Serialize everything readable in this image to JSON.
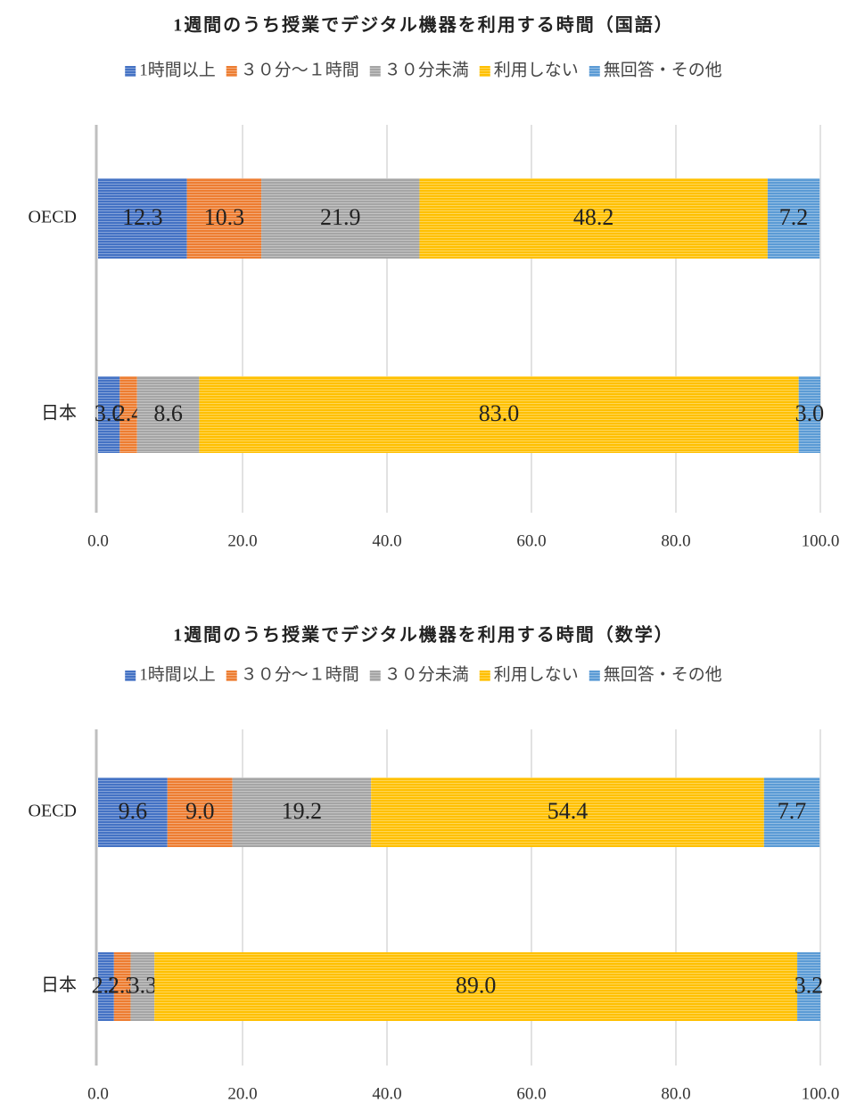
{
  "chart_data": [
    {
      "type": "stacked-bar-horizontal",
      "title": "1週間のうち授業でデジタル機器を利用する時間（国語）",
      "categories": [
        "OECD",
        "日本"
      ],
      "series": [
        {
          "name": "1時間以上",
          "color": "#4472c4",
          "values": [
            12.3,
            3.0
          ],
          "value_labels": [
            "12.3",
            "3.0"
          ]
        },
        {
          "name": "３０分～１時間",
          "color": "#ed7d31",
          "values": [
            10.3,
            2.4
          ],
          "value_labels": [
            "10.3",
            "2.4"
          ]
        },
        {
          "name": "３０分未満",
          "color": "#a5a5a5",
          "values": [
            21.9,
            8.6
          ],
          "value_labels": [
            "21.9",
            "8.6"
          ]
        },
        {
          "name": "利用しない",
          "color": "#ffc000",
          "values": [
            48.2,
            83.0
          ],
          "value_labels": [
            "48.2",
            "83.0"
          ]
        },
        {
          "name": "無回答・その他",
          "color": "#5b9bd5",
          "values": [
            7.2,
            3.0
          ],
          "value_labels": [
            "7.2",
            "3.0"
          ]
        }
      ],
      "xlim": [
        0,
        100
      ],
      "xticks": [
        {
          "value": 0,
          "label": "0.0"
        },
        {
          "value": 20,
          "label": "20.0"
        },
        {
          "value": 40,
          "label": "40.0"
        },
        {
          "value": 60,
          "label": "60.0"
        },
        {
          "value": 80,
          "label": "80.0"
        },
        {
          "value": 100,
          "label": "100.0"
        }
      ],
      "grid": true,
      "legend": "top"
    },
    {
      "type": "stacked-bar-horizontal",
      "title": "1週間のうち授業でデジタル機器を利用する時間（数学）",
      "categories": [
        "OECD",
        "日本"
      ],
      "series": [
        {
          "name": "1時間以上",
          "color": "#4472c4",
          "values": [
            9.6,
            2.2
          ],
          "value_labels": [
            "9.6",
            "2.2"
          ]
        },
        {
          "name": "３０分～１時間",
          "color": "#ed7d31",
          "values": [
            9.0,
            2.3
          ],
          "value_labels": [
            "9.0",
            "2.3"
          ]
        },
        {
          "name": "３０分未満",
          "color": "#a5a5a5",
          "values": [
            19.2,
            3.3
          ],
          "value_labels": [
            "19.2",
            "3.3"
          ]
        },
        {
          "name": "利用しない",
          "color": "#ffc000",
          "values": [
            54.4,
            89.0
          ],
          "value_labels": [
            "54.4",
            "89.0"
          ]
        },
        {
          "name": "無回答・その他",
          "color": "#5b9bd5",
          "values": [
            7.7,
            3.2
          ],
          "value_labels": [
            "7.7",
            "3.2"
          ]
        }
      ],
      "xlim": [
        0,
        100
      ],
      "xticks": [
        {
          "value": 0,
          "label": "0.0"
        },
        {
          "value": 20,
          "label": "20.0"
        },
        {
          "value": 40,
          "label": "40.0"
        },
        {
          "value": 60,
          "label": "60.0"
        },
        {
          "value": 80,
          "label": "80.0"
        },
        {
          "value": 100,
          "label": "100.0"
        }
      ],
      "grid": true,
      "legend": "top"
    }
  ]
}
